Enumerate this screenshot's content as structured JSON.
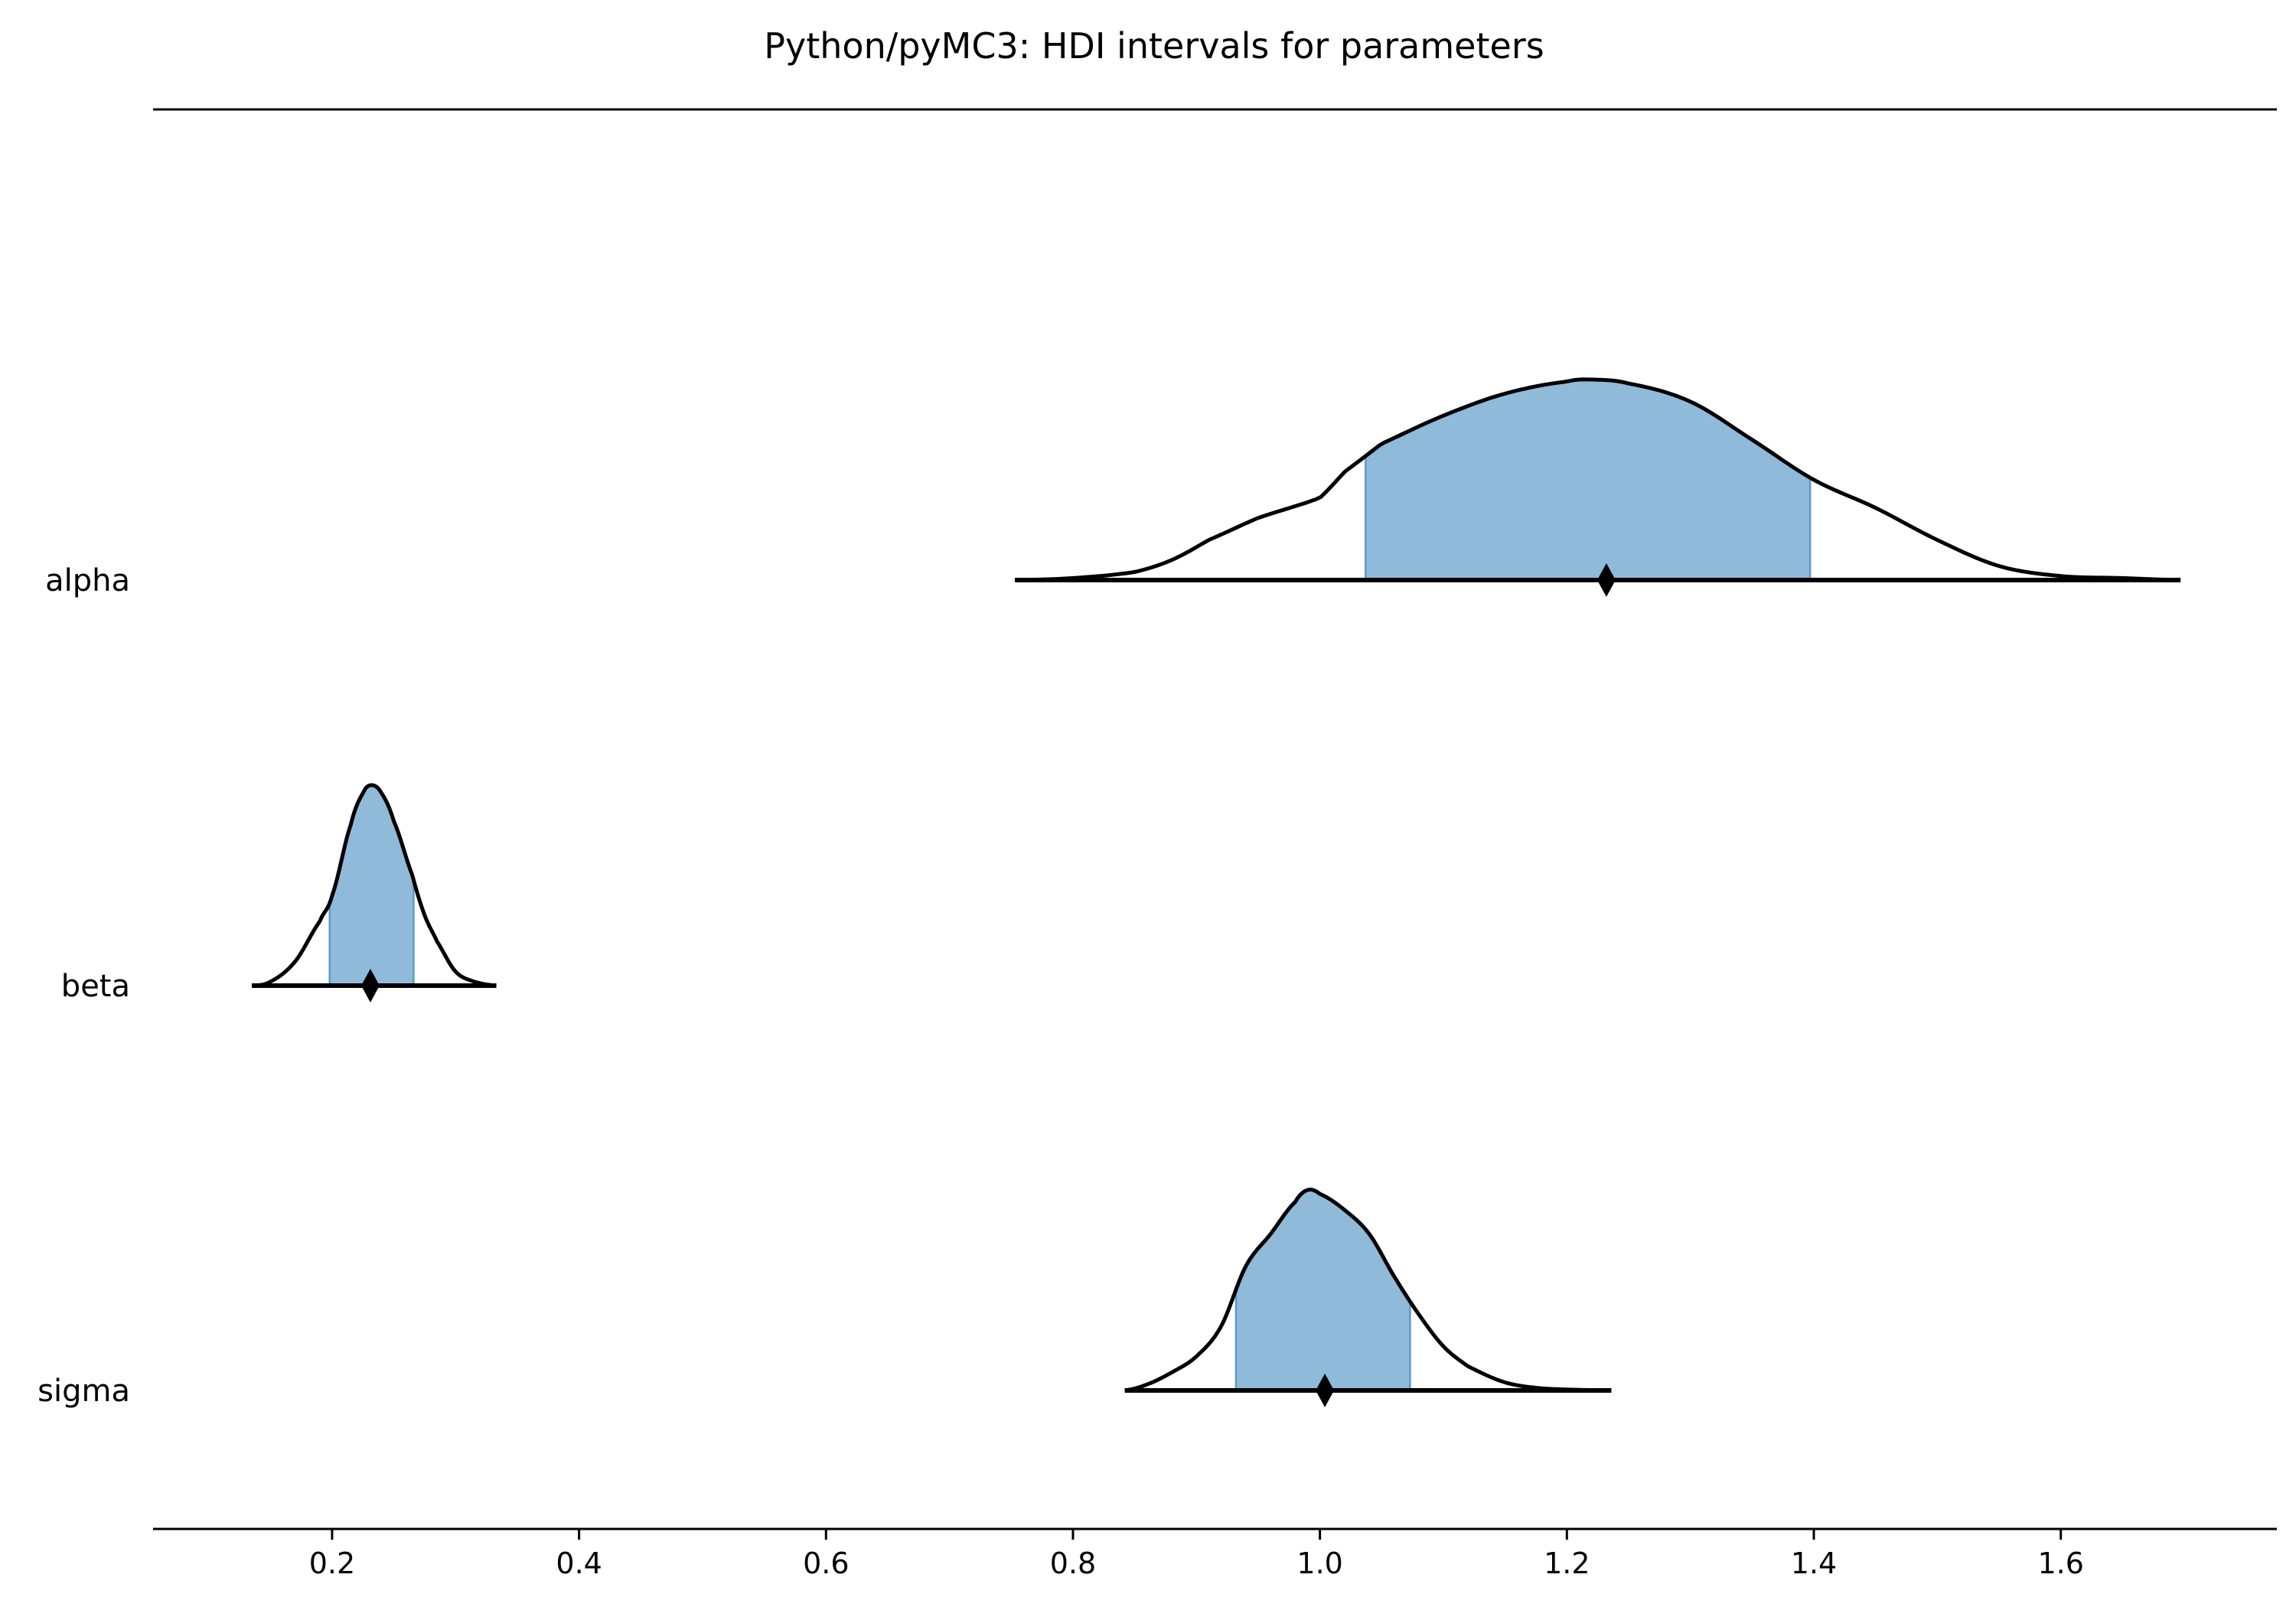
{
  "chart_data": {
    "type": "ridge",
    "title": "Python/pyMC3: HDI intervals for parameters",
    "xlabel": "",
    "ylabel": "",
    "xlim": [
      0.055,
      1.775
    ],
    "xticks": [
      0.2,
      0.4,
      0.6,
      0.8,
      1.0,
      1.2,
      1.4,
      1.6
    ],
    "xtick_labels": [
      "0.2",
      "0.4",
      "0.6",
      "0.8",
      "1.0",
      "1.2",
      "1.4",
      "1.6"
    ],
    "grid": false,
    "colors": {
      "hdi_fill": "#8fbad9",
      "hdi_edge": "#5b9ac8",
      "outline": "#000000"
    },
    "parameters": [
      {
        "name": "alpha",
        "range": [
          0.753,
          1.697
        ],
        "hdi": [
          1.037,
          1.397
        ],
        "point_estimate": 1.232,
        "density_x": [
          0.753,
          0.8,
          0.85,
          0.88,
          0.91,
          0.95,
          1.0,
          1.02,
          1.05,
          1.1,
          1.15,
          1.2,
          1.22,
          1.25,
          1.3,
          1.35,
          1.4,
          1.45,
          1.5,
          1.55,
          1.6,
          1.65,
          1.697
        ],
        "density_y": [
          0.0,
          0.01,
          0.04,
          0.1,
          0.2,
          0.31,
          0.41,
          0.54,
          0.68,
          0.82,
          0.93,
          0.99,
          1.0,
          0.98,
          0.89,
          0.7,
          0.5,
          0.36,
          0.2,
          0.07,
          0.02,
          0.01,
          0.0
        ]
      },
      {
        "name": "beta",
        "range": [
          0.135,
          0.333
        ],
        "hdi": [
          0.198,
          0.266
        ],
        "point_estimate": 0.231,
        "density_x": [
          0.135,
          0.15,
          0.17,
          0.19,
          0.2,
          0.215,
          0.225,
          0.232,
          0.24,
          0.25,
          0.265,
          0.275,
          0.285,
          0.3,
          0.315,
          0.333
        ],
        "density_y": [
          0.0,
          0.02,
          0.12,
          0.32,
          0.45,
          0.8,
          0.96,
          1.0,
          0.96,
          0.82,
          0.55,
          0.35,
          0.22,
          0.07,
          0.02,
          0.0
        ]
      },
      {
        "name": "sigma",
        "range": [
          0.842,
          1.236
        ],
        "hdi": [
          0.932,
          1.073
        ],
        "point_estimate": 1.004,
        "density_x": [
          0.842,
          0.86,
          0.88,
          0.9,
          0.92,
          0.94,
          0.96,
          0.98,
          0.99,
          1.0,
          1.02,
          1.04,
          1.06,
          1.08,
          1.1,
          1.12,
          1.15,
          1.18,
          1.236
        ],
        "density_y": [
          0.0,
          0.03,
          0.09,
          0.17,
          0.32,
          0.62,
          0.78,
          0.94,
          1.0,
          0.98,
          0.9,
          0.78,
          0.57,
          0.38,
          0.22,
          0.12,
          0.04,
          0.01,
          0.0
        ]
      }
    ]
  }
}
